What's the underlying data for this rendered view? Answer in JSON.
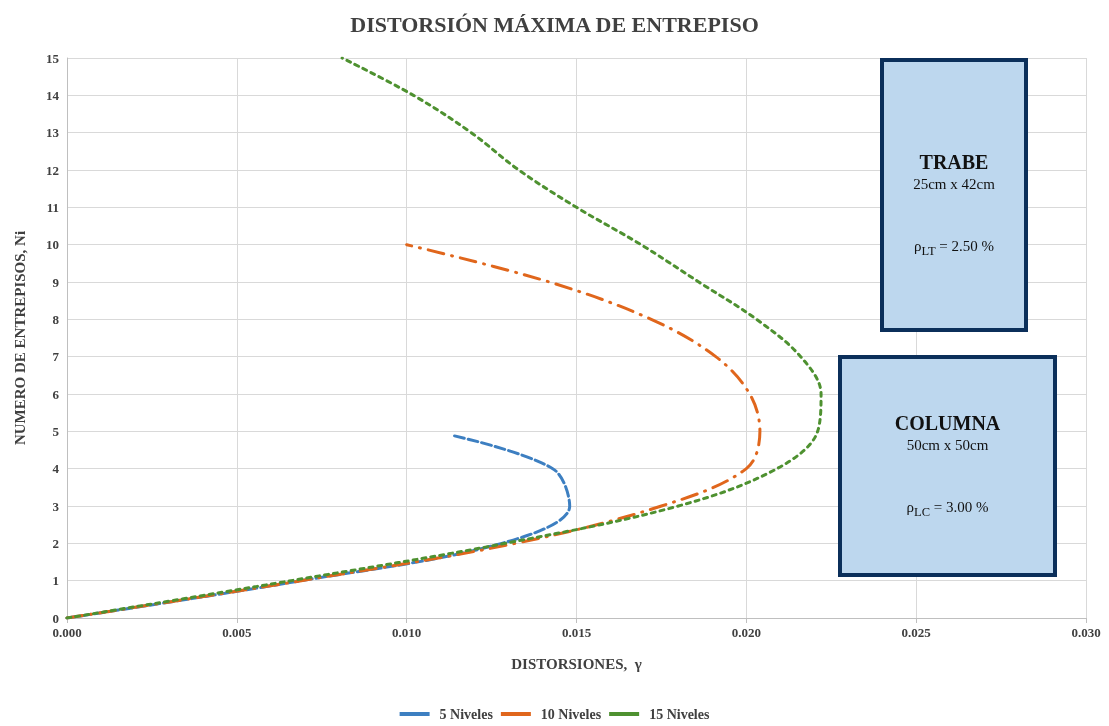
{
  "chart_data": {
    "type": "line",
    "title": "DISTORSIÓN MÁXIMA DE ENTREPISO",
    "xlabel": "DISTORSIONES,  γ",
    "ylabel": "NUMERO DE ENTREPISOS, Ni",
    "xlim": [
      0,
      0.03
    ],
    "xticks": [
      {
        "value": 0,
        "label": "0.000"
      },
      {
        "value": 0.005,
        "label": "0.005"
      },
      {
        "value": 0.01,
        "label": "0.010"
      },
      {
        "value": 0.015,
        "label": "0.015"
      },
      {
        "value": 0.02,
        "label": "0.020"
      },
      {
        "value": 0.025,
        "label": "0.025"
      },
      {
        "value": 0.03,
        "label": "0.030"
      }
    ],
    "ylim": [
      0,
      15
    ],
    "yticks": [
      0,
      1,
      2,
      3,
      4,
      5,
      6,
      7,
      8,
      9,
      10,
      11,
      12,
      13,
      14,
      15
    ],
    "grid": true,
    "legend": "bottom",
    "marker": "none",
    "series": [
      {
        "name": "5 Niveles",
        "color": "#3d7fc1",
        "line_style": "dashed",
        "x": [
          0,
          0.0069,
          0.0128,
          0.0148,
          0.0143,
          0.0113
        ],
        "values": [
          0,
          1,
          2,
          3,
          4,
          4.9
        ]
      },
      {
        "name": "10 Niveles",
        "color": "#e0661c",
        "line_style": "dashdot",
        "x": [
          0,
          0.0069,
          0.0132,
          0.0175,
          0.02,
          0.0204,
          0.0201,
          0.0191,
          0.0172,
          0.0142,
          0.01
        ],
        "values": [
          0,
          1,
          2,
          3,
          4,
          5,
          6,
          7,
          8,
          9,
          10
        ]
      },
      {
        "name": "15 Niveles",
        "color": "#4e9130",
        "line_style": "dotted",
        "x": [
          0,
          0.0066,
          0.0129,
          0.018,
          0.0209,
          0.0221,
          0.0222,
          0.0216,
          0.0203,
          0.0186,
          0.0169,
          0.015,
          0.0133,
          0.0119,
          0.0102,
          0.0081
        ],
        "values": [
          0,
          1,
          2,
          3,
          4,
          5,
          6,
          7,
          8,
          9,
          10,
          11,
          12,
          13,
          14,
          15
        ]
      }
    ],
    "annotations": [
      "TRABE",
      "25cm x 42cm",
      "ρ$_{LT}$ = 2.50 %",
      "COLUMNA",
      "50cm x 50cm",
      "ρ$_{LC}$ = 3.00 %"
    ]
  }
}
